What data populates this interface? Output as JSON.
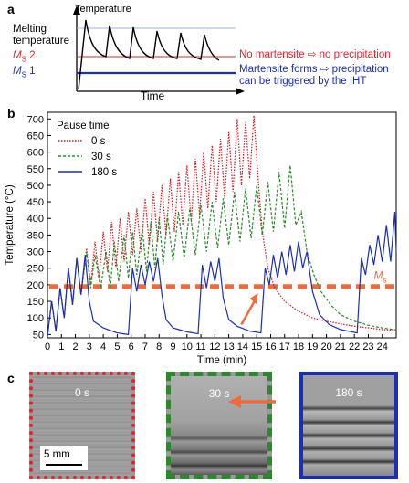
{
  "panel_a": {
    "letter": "a",
    "y_axis_label": "Temperature",
    "x_axis_label": "Time",
    "melting_label_line1": "Melting",
    "melting_label_line2": "temperature",
    "ms2_label_prefix": "M",
    "ms2_label_sub": "S",
    "ms2_label_suffix": " 2",
    "ms1_label_prefix": "M",
    "ms1_label_sub": "S",
    "ms1_label_suffix": " 1",
    "ms2_note": "No martensite ⇨ no precipitation",
    "ms1_note_line1": "Martensite forms ⇨ precipitation",
    "ms1_note_line2": "can be triggered by the IHT",
    "colors": {
      "ms2": "#e8202a",
      "ms1": "#1a2fb8",
      "melting": "#9fb0d8"
    }
  },
  "panel_b": {
    "letter": "b",
    "legend_title": "Pause time",
    "ms_label_prefix": "M",
    "ms_label_sub": "s"
  },
  "chart_data": {
    "type": "line",
    "xlabel": "Time (min)",
    "ylabel": "Temperature (°C)",
    "xlim": [
      0,
      25
    ],
    "ylim": [
      40,
      720
    ],
    "xticks": [
      "0",
      "1",
      "2",
      "3",
      "4",
      "5",
      "6",
      "7",
      "8",
      "9",
      "10",
      "11",
      "12",
      "13",
      "14",
      "15",
      "16",
      "17",
      "18",
      "19",
      "20",
      "21",
      "22",
      "23",
      "24"
    ],
    "yticks": [
      "50",
      "100",
      "150",
      "200",
      "250",
      "300",
      "350",
      "400",
      "450",
      "500",
      "550",
      "600",
      "650",
      "700"
    ],
    "ms_line": 195,
    "series": [
      {
        "name": "0 s",
        "style": "dotted",
        "color": "#d8141c",
        "points": [
          [
            0,
            45
          ],
          [
            0.3,
            150
          ],
          [
            0.6,
            60
          ],
          [
            0.9,
            190
          ],
          [
            1.2,
            100
          ],
          [
            1.5,
            250
          ],
          [
            1.8,
            140
          ],
          [
            2.1,
            280
          ],
          [
            2.4,
            170
          ],
          [
            2.8,
            310
          ],
          [
            3.1,
            200
          ],
          [
            3.4,
            330
          ],
          [
            3.7,
            220
          ],
          [
            4.0,
            360
          ],
          [
            4.3,
            240
          ],
          [
            4.6,
            390
          ],
          [
            4.9,
            250
          ],
          [
            5.2,
            400
          ],
          [
            5.5,
            270
          ],
          [
            5.8,
            420
          ],
          [
            6.1,
            290
          ],
          [
            6.4,
            430
          ],
          [
            6.7,
            300
          ],
          [
            7.0,
            460
          ],
          [
            7.3,
            320
          ],
          [
            7.6,
            480
          ],
          [
            7.9,
            330
          ],
          [
            8.2,
            500
          ],
          [
            8.5,
            350
          ],
          [
            8.8,
            520
          ],
          [
            9.1,
            360
          ],
          [
            9.4,
            540
          ],
          [
            9.7,
            380
          ],
          [
            10.0,
            560
          ],
          [
            10.3,
            390
          ],
          [
            10.6,
            580
          ],
          [
            10.9,
            410
          ],
          [
            11.2,
            600
          ],
          [
            11.5,
            430
          ],
          [
            11.8,
            620
          ],
          [
            12.1,
            450
          ],
          [
            12.4,
            640
          ],
          [
            12.7,
            460
          ],
          [
            13.0,
            660
          ],
          [
            13.3,
            480
          ],
          [
            13.6,
            700
          ],
          [
            13.9,
            500
          ],
          [
            14.2,
            690
          ],
          [
            14.5,
            520
          ],
          [
            14.8,
            710
          ],
          [
            15.1,
            520
          ],
          [
            15.4,
            360
          ],
          [
            15.8,
            250
          ],
          [
            16.3,
            190
          ],
          [
            17,
            150
          ],
          [
            18,
            120
          ],
          [
            19,
            100
          ],
          [
            20,
            90
          ],
          [
            21,
            82
          ],
          [
            22,
            75
          ],
          [
            23,
            70
          ],
          [
            24,
            65
          ],
          [
            25,
            62
          ]
        ]
      },
      {
        "name": "30 s",
        "style": "dashed",
        "color": "#2a8a2a",
        "points": [
          [
            0,
            45
          ],
          [
            0.3,
            150
          ],
          [
            0.6,
            60
          ],
          [
            0.9,
            190
          ],
          [
            1.2,
            100
          ],
          [
            1.5,
            250
          ],
          [
            1.8,
            140
          ],
          [
            2.1,
            280
          ],
          [
            2.4,
            170
          ],
          [
            2.8,
            300
          ],
          [
            3.1,
            190
          ],
          [
            3.4,
            290
          ],
          [
            3.8,
            190
          ],
          [
            4.2,
            300
          ],
          [
            4.5,
            190
          ],
          [
            4.8,
            330
          ],
          [
            5.1,
            210
          ],
          [
            5.5,
            350
          ],
          [
            5.8,
            220
          ],
          [
            6.1,
            360
          ],
          [
            6.4,
            230
          ],
          [
            6.8,
            370
          ],
          [
            7.1,
            240
          ],
          [
            7.4,
            390
          ],
          [
            7.7,
            250
          ],
          [
            8.0,
            400
          ],
          [
            8.3,
            260
          ],
          [
            8.6,
            410
          ],
          [
            9.0,
            270
          ],
          [
            9.4,
            420
          ],
          [
            9.8,
            280
          ],
          [
            10.2,
            430
          ],
          [
            10.6,
            290
          ],
          [
            11.0,
            440
          ],
          [
            11.4,
            300
          ],
          [
            11.8,
            450
          ],
          [
            12.2,
            310
          ],
          [
            12.6,
            460
          ],
          [
            13.0,
            320
          ],
          [
            13.4,
            480
          ],
          [
            13.8,
            330
          ],
          [
            14.2,
            490
          ],
          [
            14.6,
            340
          ],
          [
            15.0,
            500
          ],
          [
            15.4,
            350
          ],
          [
            15.8,
            510
          ],
          [
            16.2,
            360
          ],
          [
            16.6,
            540
          ],
          [
            17.0,
            370
          ],
          [
            17.4,
            560
          ],
          [
            17.8,
            380
          ],
          [
            18.2,
            420
          ],
          [
            18.6,
            300
          ],
          [
            19.1,
            230
          ],
          [
            19.6,
            180
          ],
          [
            20.3,
            140
          ],
          [
            21,
            110
          ],
          [
            22,
            90
          ],
          [
            23,
            78
          ],
          [
            24,
            70
          ],
          [
            25,
            64
          ]
        ]
      },
      {
        "name": "180 s",
        "style": "solid",
        "color": "#1a2fb8",
        "points": [
          [
            0,
            45
          ],
          [
            0.3,
            150
          ],
          [
            0.6,
            60
          ],
          [
            0.9,
            190
          ],
          [
            1.2,
            100
          ],
          [
            1.5,
            250
          ],
          [
            1.8,
            140
          ],
          [
            2.1,
            280
          ],
          [
            2.4,
            170
          ],
          [
            2.7,
            290
          ],
          [
            3.0,
            150
          ],
          [
            3.3,
            90
          ],
          [
            4,
            70
          ],
          [
            5,
            55
          ],
          [
            5.8,
            50
          ],
          [
            6.1,
            250
          ],
          [
            6.4,
            180
          ],
          [
            6.7,
            260
          ],
          [
            7.0,
            200
          ],
          [
            7.3,
            270
          ],
          [
            7.6,
            210
          ],
          [
            7.9,
            280
          ],
          [
            8.2,
            170
          ],
          [
            8.5,
            95
          ],
          [
            9,
            70
          ],
          [
            10,
            58
          ],
          [
            10.8,
            52
          ],
          [
            11.1,
            260
          ],
          [
            11.4,
            190
          ],
          [
            11.7,
            270
          ],
          [
            12.0,
            210
          ],
          [
            12.3,
            280
          ],
          [
            12.6,
            160
          ],
          [
            13,
            95
          ],
          [
            13.6,
            75
          ],
          [
            14.5,
            60
          ],
          [
            15.3,
            55
          ],
          [
            15.6,
            250
          ],
          [
            15.9,
            200
          ],
          [
            16.2,
            290
          ],
          [
            16.5,
            220
          ],
          [
            16.8,
            300
          ],
          [
            17.1,
            230
          ],
          [
            17.4,
            320
          ],
          [
            17.7,
            240
          ],
          [
            18.0,
            330
          ],
          [
            18.3,
            250
          ],
          [
            18.6,
            300
          ],
          [
            19.0,
            180
          ],
          [
            19.5,
            110
          ],
          [
            20.2,
            80
          ],
          [
            21,
            65
          ],
          [
            22.2,
            55
          ],
          [
            22.5,
            280
          ],
          [
            22.8,
            230
          ],
          [
            23.1,
            320
          ],
          [
            23.4,
            260
          ],
          [
            23.7,
            350
          ],
          [
            24.0,
            270
          ],
          [
            24.3,
            380
          ],
          [
            24.6,
            270
          ],
          [
            24.9,
            420
          ],
          [
            25,
            300
          ]
        ]
      }
    ]
  },
  "panel_c": {
    "letter": "c",
    "specimens": [
      {
        "label": "0 s",
        "border_color": "#e8202a",
        "border_style": "dotted"
      },
      {
        "label": "30 s",
        "border_color": "#2a8a2a",
        "border_style": "dashed"
      },
      {
        "label": "180 s",
        "border_color": "#1a2fb8",
        "border_style": "solid"
      }
    ],
    "scale_bar": "5 mm",
    "arrow_color": "#f26a3a"
  }
}
